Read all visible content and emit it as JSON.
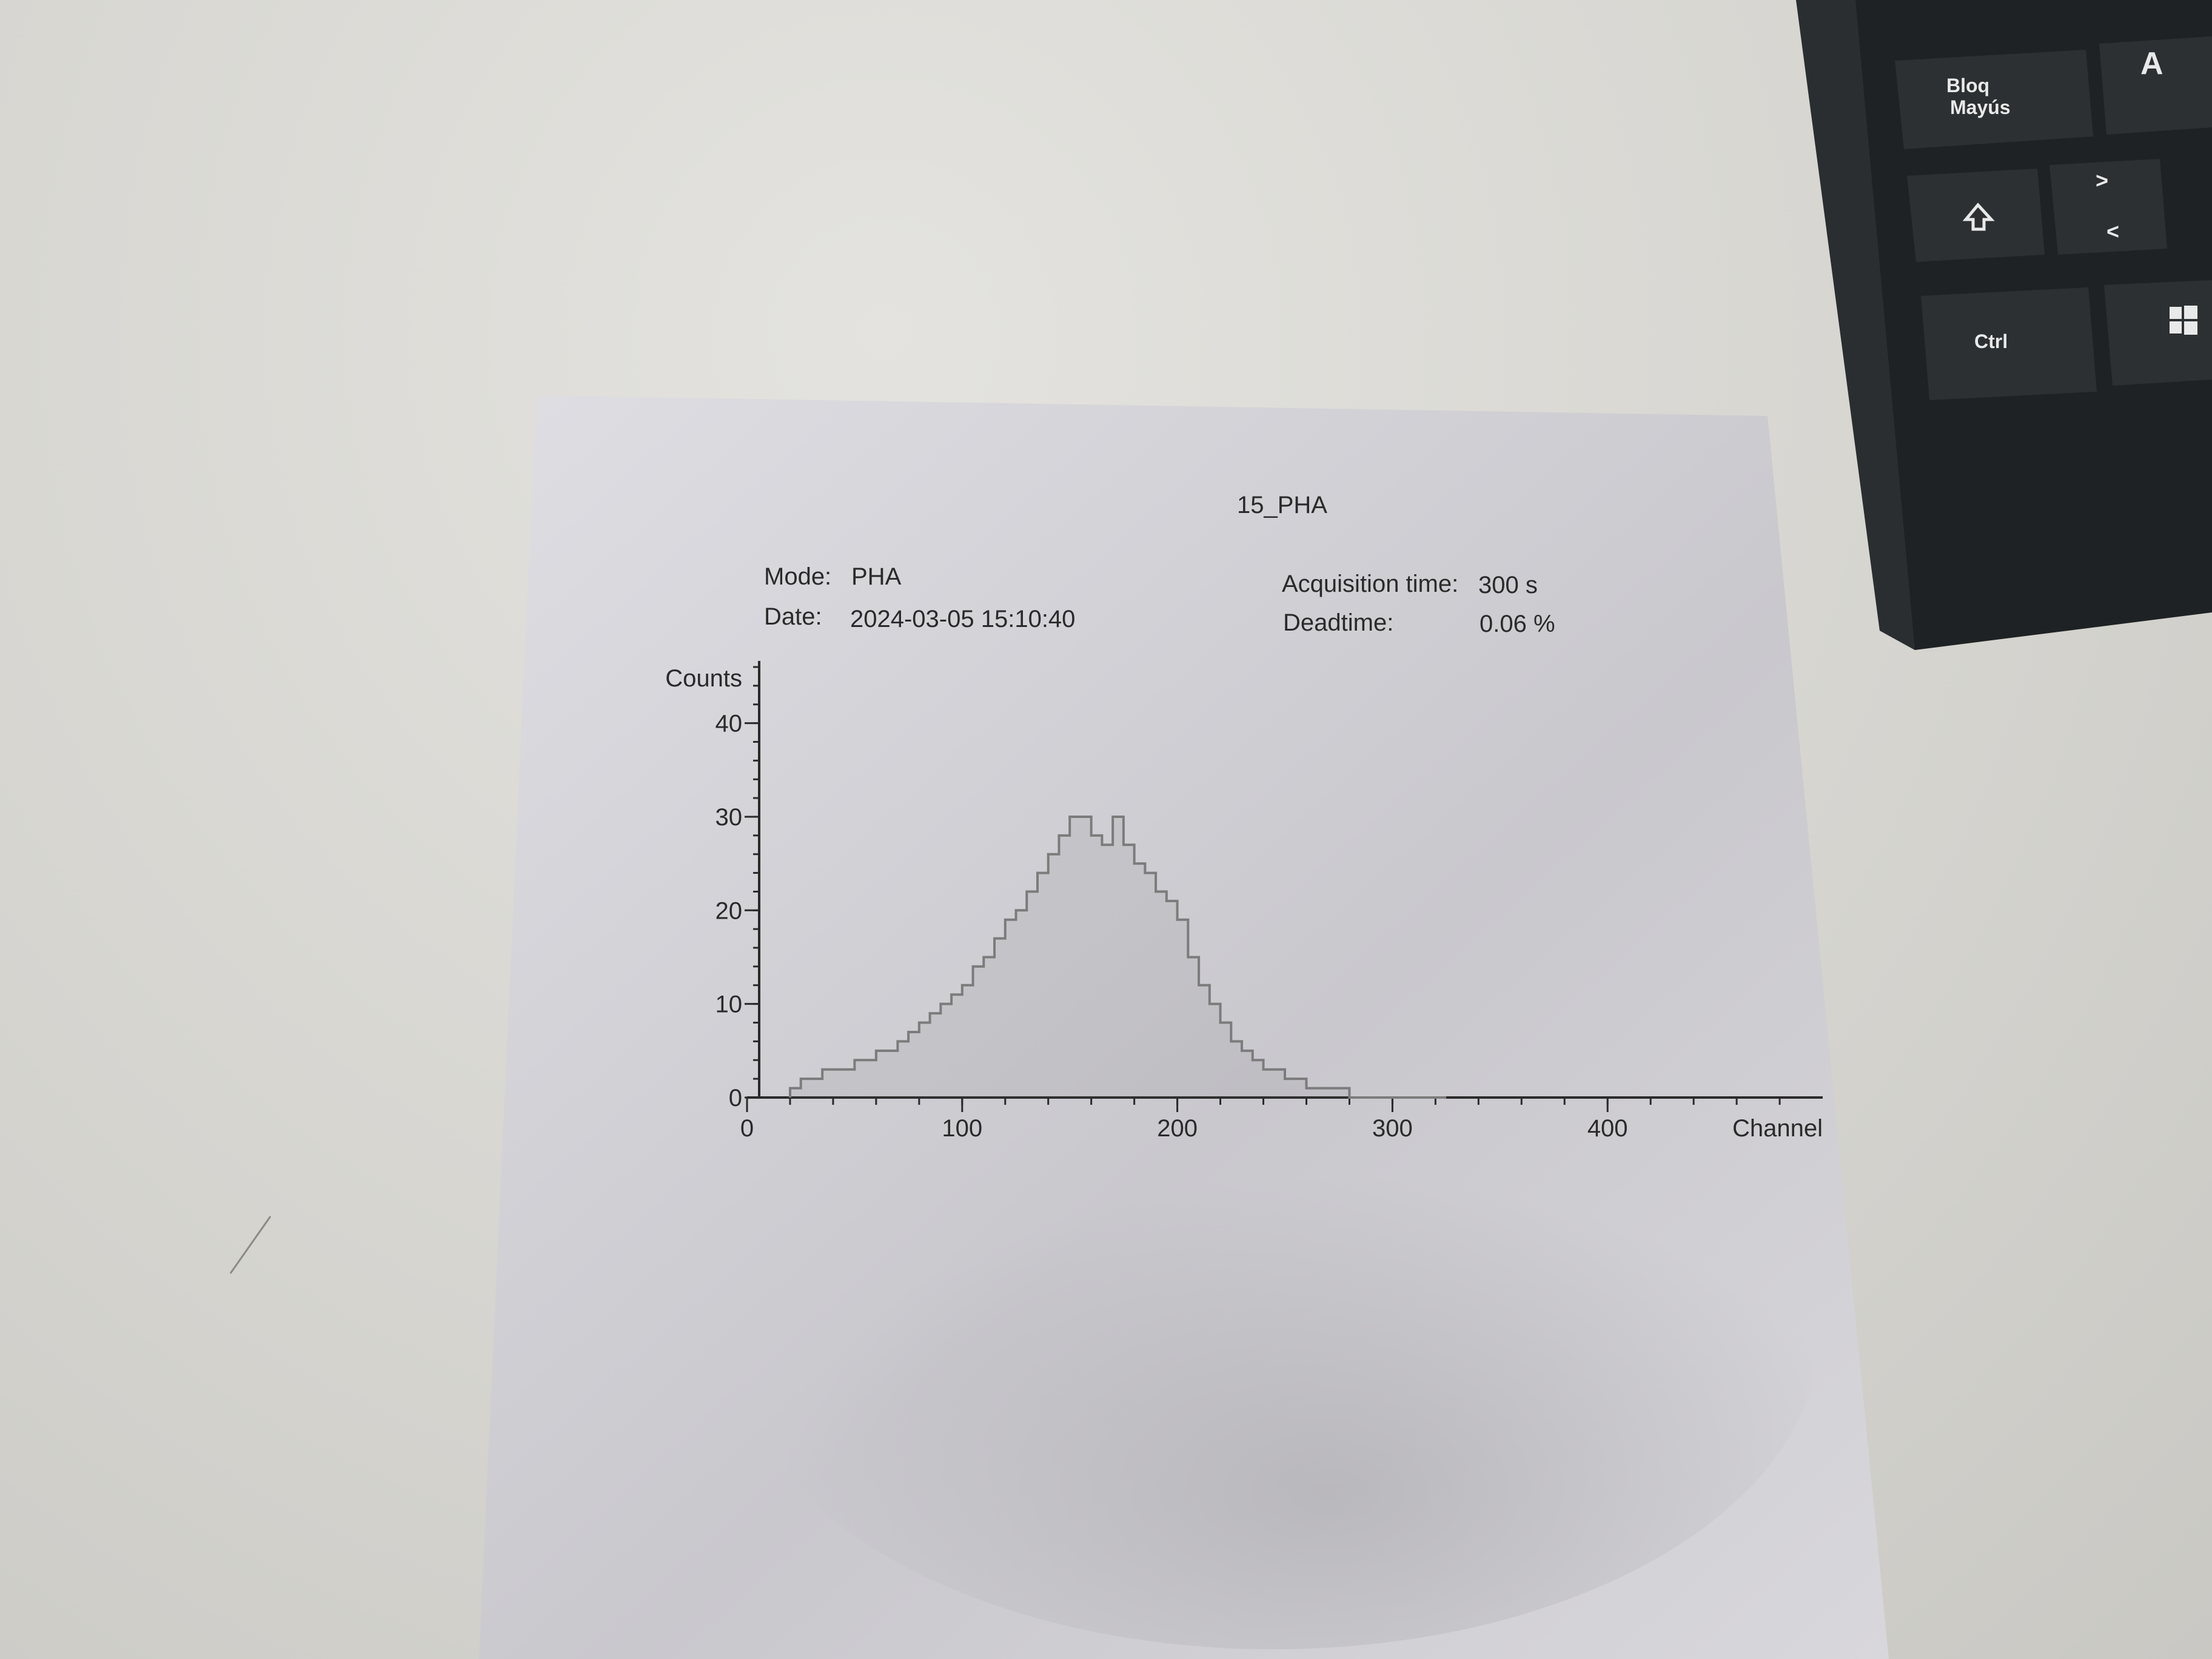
{
  "header": {
    "title": "15_PHA",
    "mode_label": "Mode:",
    "mode_value": "PHA",
    "date_label": "Date:",
    "date_value": "2024-03-05 15:10:40",
    "acq_label": "Acquisition time:",
    "acq_value": "300 s",
    "dead_label": "Deadtime:",
    "dead_value": "0.06 %"
  },
  "keyboard": {
    "caps_line1": "Bloq",
    "caps_line2": "Mayús",
    "key_a": "A",
    "key_gt": ">",
    "key_lt": "<",
    "ctrl": "Ctrl",
    "shift_icon": "shift-arrow-icon",
    "windows_icon": "windows-logo-icon"
  },
  "chart_data": {
    "type": "histogram",
    "xlabel": "Channel",
    "ylabel": "Counts",
    "xlim": [
      0,
      500
    ],
    "ylim": [
      0,
      46
    ],
    "x_ticks": [
      0,
      100,
      200,
      300,
      400
    ],
    "y_ticks": [
      0,
      10,
      20,
      30,
      40
    ],
    "series": [
      {
        "x": [
          20,
          25,
          30,
          35,
          40,
          45,
          50,
          55,
          60,
          65,
          70,
          75,
          80,
          85,
          90,
          95,
          100,
          105,
          110,
          115,
          120,
          125,
          130,
          135,
          140,
          145,
          150,
          155,
          160,
          165,
          170,
          175,
          180,
          185,
          190,
          195,
          200,
          205,
          210,
          215,
          220,
          225,
          230,
          235,
          240,
          245,
          250,
          255,
          260,
          265,
          270,
          275,
          280,
          285,
          290,
          295,
          300,
          305,
          310,
          315,
          320
        ],
        "values": [
          1,
          2,
          2,
          3,
          3,
          3,
          4,
          4,
          5,
          5,
          6,
          7,
          8,
          9,
          10,
          11,
          12,
          14,
          15,
          17,
          19,
          20,
          22,
          24,
          26,
          28,
          30,
          30,
          28,
          27,
          30,
          27,
          25,
          24,
          22,
          21,
          19,
          15,
          12,
          10,
          8,
          6,
          5,
          4,
          3,
          3,
          2,
          2,
          1,
          1,
          1,
          1,
          0,
          0,
          0,
          0,
          0,
          0,
          0,
          0,
          0
        ]
      }
    ],
    "line_color": "#7c7c7c",
    "grid": false
  },
  "colors": {
    "paper": "#dcdce0",
    "ink": "#2a2a2a",
    "keyboard": "#1f2224"
  }
}
